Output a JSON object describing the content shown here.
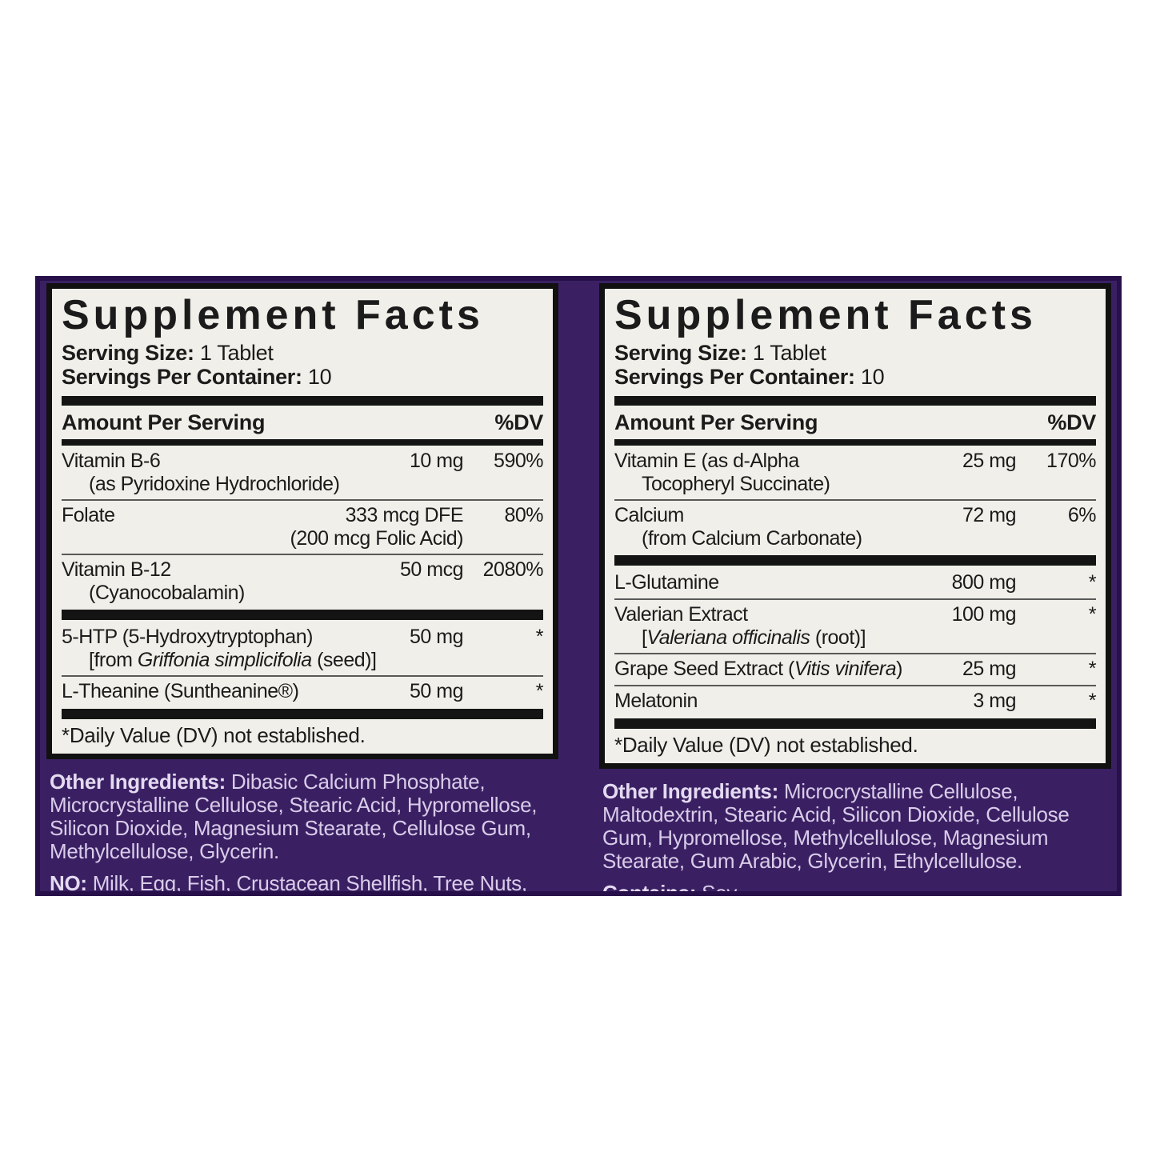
{
  "colors": {
    "page_bg": "#ffffff",
    "band_bg": "#3a2063",
    "band_edge": "#27104a",
    "label_bg": "#f0efe9",
    "label_border": "#111111",
    "bar": "#141414",
    "text": "#1b1b1b",
    "purple_text": "#d9cce9"
  },
  "panels": [
    {
      "title": "Supplement Facts",
      "serving_size_label": "Serving Size:",
      "serving_size_value": "1 Tablet",
      "servings_label": "Servings Per Container:",
      "servings_value": "10",
      "amount_header": "Amount Per Serving",
      "dv_header": "%DV",
      "rows": [
        {
          "name": "Vitamin B-6",
          "sub": "(as Pyridoxine Hydrochloride)",
          "sub_align": "indent",
          "amount": "10 mg",
          "dv": "590%",
          "divider_after": "hairline"
        },
        {
          "name": "Folate",
          "sub": "(200 mcg Folic Acid)",
          "sub_align": "amount",
          "amount": "333 mcg DFE",
          "dv": "80%",
          "divider_after": "hairline"
        },
        {
          "name": "Vitamin B-12",
          "sub": "(Cyanocobalamin)",
          "sub_align": "indent",
          "amount": "50 mcg",
          "dv": "2080%",
          "divider_after": "thick"
        },
        {
          "name": "5-HTP (5-Hydroxytryptophan)",
          "sub": "[from *Griffonia simplicifolia* (seed)]",
          "sub_align": "indent",
          "amount": "50 mg",
          "dv": "*",
          "divider_after": "hairline"
        },
        {
          "name": "L-Theanine (Suntheanine®)",
          "amount": "50 mg",
          "dv": "*",
          "divider_after": "thick"
        }
      ],
      "footnote": "*Daily Value (DV) not established.",
      "paragraphs": [
        {
          "lead": "Other Ingredients:",
          "text": "Dibasic Calcium Phosphate, Microcrystalline Cellulose, Stearic Acid, Hypromellose, Silicon Dioxide, Magnesium Stearate, Cellulose Gum, Methylcellulose, Glycerin."
        },
        {
          "lead": "NO:",
          "text": "Milk, Egg, Fish, Crustacean Shellfish, Tree Nuts, Peanuts, Wheat, Soybeans, Yeast, Artificial Colors or Flavors, Added"
        }
      ]
    },
    {
      "title": "Supplement Facts",
      "serving_size_label": "Serving Size:",
      "serving_size_value": "1 Tablet",
      "servings_label": "Servings Per Container:",
      "servings_value": "10",
      "amount_header": "Amount Per Serving",
      "dv_header": "%DV",
      "rows": [
        {
          "name": "Vitamin E (as d-Alpha",
          "sub": "Tocopheryl Succinate)",
          "sub_align": "indent",
          "amount": "25 mg",
          "dv": "170%",
          "divider_after": "hairline"
        },
        {
          "name": "Calcium",
          "sub": "(from Calcium Carbonate)",
          "sub_align": "indent",
          "amount": "72 mg",
          "dv": "6%",
          "divider_after": "thick"
        },
        {
          "name": "L-Glutamine",
          "amount": "800 mg",
          "dv": "*",
          "divider_after": "hairline"
        },
        {
          "name": "Valerian Extract",
          "sub": "[*Valeriana officinalis* (root)]",
          "sub_align": "indent",
          "amount": "100 mg",
          "dv": "*",
          "divider_after": "hairline"
        },
        {
          "name": "Grape Seed Extract (*Vitis vinifera*)",
          "amount": "25 mg",
          "dv": "*",
          "divider_after": "hairline"
        },
        {
          "name": "Melatonin",
          "amount": "3 mg",
          "dv": "*",
          "divider_after": "thick"
        }
      ],
      "footnote": "*Daily Value (DV) not established.",
      "paragraphs": [
        {
          "lead": "Other Ingredients:",
          "text": "Microcrystalline Cellulose, Maltodextrin, Stearic Acid, Silicon Dioxide, Cellulose Gum, Hypromellose, Methylcellulose, Magnesium Stearate, Gum Arabic, Glycerin, Ethylcellulose."
        },
        {
          "lead": "Contains:",
          "text": "Soy"
        }
      ]
    }
  ]
}
